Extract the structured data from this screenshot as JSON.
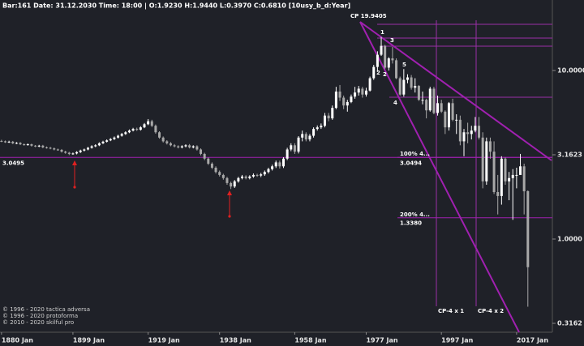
{
  "chart_data": {
    "type": "candlestick",
    "title": "Bar:161 Date: 31.12.2030 Time: 18:00 | O:1.9230 H:1.9440 L:0.3970 C:0.6810  [10usy_b_d:Year]",
    "log_scale": true,
    "up_color": "#ffffff",
    "down_color": "#a8a8a8",
    "line_color": "#a020b0",
    "xlim": [
      1879.6,
      2026.3
    ],
    "ylim": [
      0.28,
      26.2
    ],
    "xticks": [
      {
        "value": 1880,
        "label": "1880 Jan"
      },
      {
        "value": 1899,
        "label": "1899 Jan"
      },
      {
        "value": 1919,
        "label": "1919 Jan"
      },
      {
        "value": 1938,
        "label": "1938 Jan"
      },
      {
        "value": 1958,
        "label": "1958 Jan"
      },
      {
        "value": 1977,
        "label": "1977 Jan"
      },
      {
        "value": 1997,
        "label": "1997 Jan"
      },
      {
        "value": 2017,
        "label": "2017 Jan"
      }
    ],
    "yticks": [
      {
        "value": 10,
        "label": "10.0000"
      },
      3.1623,
      {
        "value": 1,
        "label": "1.0000"
      },
      0.3162
    ],
    "reference_line": 3.0495,
    "annotations": [
      "CP 19.9405",
      "1",
      "2",
      "2",
      "3",
      "4",
      "5",
      "100%  4...",
      "200%  4...",
      "CP-4 x 1",
      "CP-4 x 2"
    ],
    "fib_levels": [
      3.0494,
      {
        "value": 1.338,
        "label": "1.3380"
      }
    ],
    "footer": [
      "© 1996 - 2020 tactica adversa",
      "© 1996 - 2020 protoforma",
      "© 2010 - 2020 skilful pro"
    ],
    "x": [
      1880,
      1881,
      1882,
      1883,
      1884,
      1885,
      1886,
      1887,
      1888,
      1889,
      1890,
      1891,
      1892,
      1893,
      1894,
      1895,
      1896,
      1897,
      1898,
      1899,
      1900,
      1901,
      1902,
      1903,
      1904,
      1905,
      1906,
      1907,
      1908,
      1909,
      1910,
      1911,
      1912,
      1913,
      1914,
      1915,
      1916,
      1917,
      1918,
      1919,
      1920,
      1921,
      1922,
      1923,
      1924,
      1925,
      1926,
      1927,
      1928,
      1929,
      1930,
      1931,
      1932,
      1933,
      1934,
      1935,
      1936,
      1937,
      1938,
      1939,
      1940,
      1941,
      1942,
      1943,
      1944,
      1945,
      1946,
      1947,
      1948,
      1949,
      1950,
      1951,
      1952,
      1953,
      1954,
      1955,
      1956,
      1957,
      1958,
      1959,
      1960,
      1961,
      1962,
      1963,
      1964,
      1965,
      1966,
      1967,
      1968,
      1969,
      1970,
      1971,
      1972,
      1973,
      1974,
      1975,
      1976,
      1977,
      1978,
      1979,
      1980,
      1981,
      1982,
      1983,
      1984,
      1985,
      1986,
      1987,
      1988,
      1989,
      1990,
      1991,
      1992,
      1993,
      1994,
      1995,
      1996,
      1997,
      1998,
      1999,
      2000,
      2001,
      2002,
      2003,
      2004,
      2005,
      2006,
      2007,
      2008,
      2009,
      2010,
      2011,
      2012,
      2013,
      2014,
      2015,
      2016,
      2017,
      2018,
      2019,
      2020
    ],
    "open": [
      3.82,
      3.8,
      3.75,
      3.78,
      3.7,
      3.72,
      3.65,
      3.62,
      3.65,
      3.58,
      3.55,
      3.58,
      3.5,
      3.48,
      3.45,
      3.4,
      3.38,
      3.3,
      3.25,
      3.2,
      3.22,
      3.28,
      3.35,
      3.4,
      3.48,
      3.55,
      3.6,
      3.7,
      3.78,
      3.85,
      3.92,
      4.0,
      4.1,
      4.2,
      4.3,
      4.4,
      4.5,
      4.45,
      4.6,
      4.8,
      5.0,
      4.7,
      4.3,
      4.0,
      3.8,
      3.7,
      3.6,
      3.55,
      3.5,
      3.55,
      3.6,
      3.5,
      3.55,
      3.4,
      3.2,
      3.0,
      2.8,
      2.65,
      2.5,
      2.4,
      2.3,
      2.15,
      2.05,
      2.2,
      2.3,
      2.35,
      2.3,
      2.35,
      2.4,
      2.38,
      2.42,
      2.5,
      2.6,
      2.7,
      2.85,
      2.7,
      3.0,
      3.4,
      3.6,
      3.3,
      4.0,
      4.2,
      3.9,
      4.1,
      4.5,
      4.6,
      4.7,
      5.4,
      5.2,
      6.0,
      7.5,
      6.9,
      6.2,
      6.5,
      7.0,
      7.4,
      7.8,
      7.2,
      7.6,
      9.0,
      10.5,
      12.4,
      14.0,
      10.4,
      11.8,
      11.5,
      9.0,
      7.2,
      8.8,
      9.1,
      7.9,
      8.1,
      6.7,
      6.7,
      5.8,
      7.8,
      5.6,
      6.4,
      5.7,
      4.6,
      6.4,
      5.1,
      5.1,
      3.8,
      4.3,
      4.2,
      4.4,
      4.7,
      4.0,
      2.2,
      3.8,
      3.3,
      1.9,
      1.8,
      3.0,
      2.2,
      2.3,
      2.4,
      2.4,
      2.7,
      1.923
    ],
    "high": [
      3.88,
      3.84,
      3.83,
      3.82,
      3.76,
      3.76,
      3.69,
      3.69,
      3.68,
      3.61,
      3.62,
      3.62,
      3.54,
      3.52,
      3.49,
      3.44,
      3.42,
      3.34,
      3.29,
      3.26,
      3.32,
      3.39,
      3.44,
      3.52,
      3.6,
      3.65,
      3.75,
      3.83,
      3.9,
      3.97,
      4.06,
      4.16,
      4.26,
      4.36,
      4.47,
      4.57,
      4.58,
      4.67,
      4.88,
      5.15,
      5.1,
      4.78,
      4.36,
      4.06,
      3.86,
      3.76,
      3.66,
      3.6,
      3.6,
      3.65,
      3.66,
      3.6,
      3.6,
      3.45,
      3.25,
      3.05,
      2.85,
      2.7,
      2.55,
      2.44,
      2.34,
      2.19,
      2.24,
      2.34,
      2.4,
      2.39,
      2.39,
      2.45,
      2.44,
      2.47,
      2.55,
      2.65,
      2.76,
      2.92,
      2.92,
      3.06,
      3.48,
      3.7,
      3.7,
      4.08,
      4.4,
      4.3,
      4.2,
      4.6,
      4.72,
      4.85,
      5.6,
      5.6,
      6.2,
      8.0,
      8.2,
      7.1,
      6.7,
      7.2,
      8.0,
      8.1,
      8.0,
      7.9,
      9.2,
      10.8,
      13.0,
      15.8,
      14.2,
      12.0,
      13.8,
      11.8,
      9.2,
      10.2,
      9.5,
      9.4,
      9.0,
      8.2,
      7.5,
      6.8,
      8.0,
      8.0,
      7.1,
      6.7,
      5.8,
      6.5,
      6.8,
      5.5,
      5.4,
      4.5,
      4.9,
      4.7,
      5.3,
      5.3,
      4.3,
      4.0,
      4.0,
      3.8,
      2.4,
      3.1,
      3.05,
      2.5,
      2.6,
      2.65,
      3.2,
      2.8,
      1.944
    ],
    "low": [
      3.76,
      3.72,
      3.72,
      3.66,
      3.66,
      3.61,
      3.58,
      3.58,
      3.54,
      3.51,
      3.51,
      3.46,
      3.44,
      3.41,
      3.36,
      3.34,
      3.26,
      3.21,
      3.15,
      3.16,
      3.18,
      3.24,
      3.31,
      3.36,
      3.44,
      3.51,
      3.56,
      3.66,
      3.74,
      3.81,
      3.87,
      3.95,
      4.05,
      4.15,
      4.25,
      4.35,
      4.38,
      4.4,
      4.55,
      4.74,
      4.62,
      4.22,
      3.94,
      3.74,
      3.64,
      3.55,
      3.5,
      3.45,
      3.45,
      3.5,
      3.45,
      3.45,
      3.35,
      3.14,
      2.94,
      2.75,
      2.6,
      2.45,
      2.35,
      2.25,
      2.1,
      1.98,
      2.01,
      2.16,
      2.26,
      2.26,
      2.26,
      2.31,
      2.34,
      2.33,
      2.37,
      2.45,
      2.55,
      2.64,
      2.62,
      2.64,
      2.94,
      3.32,
      3.2,
      3.22,
      3.8,
      3.8,
      3.8,
      4.0,
      4.4,
      4.5,
      4.6,
      5.0,
      5.1,
      5.9,
      6.6,
      5.9,
      5.7,
      6.4,
      6.8,
      7.1,
      6.9,
      7.0,
      7.5,
      8.8,
      9.8,
      12.2,
      10.2,
      10.0,
      11.0,
      8.9,
      7.1,
      7.0,
      8.4,
      7.7,
      7.4,
      6.6,
      6.3,
      5.2,
      5.7,
      5.5,
      5.4,
      5.6,
      4.2,
      4.4,
      5.0,
      4.2,
      3.6,
      3.1,
      3.7,
      3.9,
      4.3,
      3.9,
      2.0,
      2.1,
      3.0,
      1.85,
      1.4,
      1.6,
      2.1,
      1.7,
      1.3,
      2.0,
      2.4,
      1.4,
      0.397
    ],
    "close": [
      3.8,
      3.75,
      3.78,
      3.7,
      3.72,
      3.65,
      3.62,
      3.65,
      3.58,
      3.55,
      3.58,
      3.5,
      3.48,
      3.45,
      3.4,
      3.38,
      3.3,
      3.25,
      3.2,
      3.22,
      3.28,
      3.35,
      3.4,
      3.48,
      3.55,
      3.6,
      3.7,
      3.78,
      3.85,
      3.92,
      4.0,
      4.1,
      4.2,
      4.3,
      4.4,
      4.5,
      4.45,
      4.6,
      4.8,
      5.0,
      4.7,
      4.3,
      4.0,
      3.8,
      3.7,
      3.6,
      3.55,
      3.5,
      3.55,
      3.6,
      3.5,
      3.55,
      3.4,
      3.2,
      3.0,
      2.8,
      2.65,
      2.5,
      2.4,
      2.3,
      2.15,
      2.05,
      2.2,
      2.3,
      2.35,
      2.3,
      2.35,
      2.4,
      2.38,
      2.42,
      2.5,
      2.6,
      2.7,
      2.85,
      2.7,
      3.0,
      3.4,
      3.6,
      3.3,
      4.0,
      4.2,
      3.9,
      4.1,
      4.5,
      4.6,
      4.7,
      5.4,
      5.2,
      6.0,
      7.5,
      6.9,
      6.2,
      6.5,
      7.0,
      7.4,
      7.8,
      7.2,
      7.6,
      9.0,
      10.5,
      12.4,
      14.0,
      10.4,
      11.8,
      11.5,
      9.0,
      7.2,
      8.8,
      9.1,
      7.9,
      8.1,
      6.7,
      6.7,
      5.8,
      7.8,
      5.6,
      6.4,
      5.7,
      4.6,
      6.4,
      5.1,
      5.1,
      3.8,
      4.3,
      4.2,
      4.4,
      4.7,
      4.0,
      2.2,
      3.8,
      3.3,
      1.9,
      1.8,
      3.0,
      2.2,
      2.3,
      2.4,
      2.4,
      2.7,
      1.92,
      0.681
    ]
  }
}
